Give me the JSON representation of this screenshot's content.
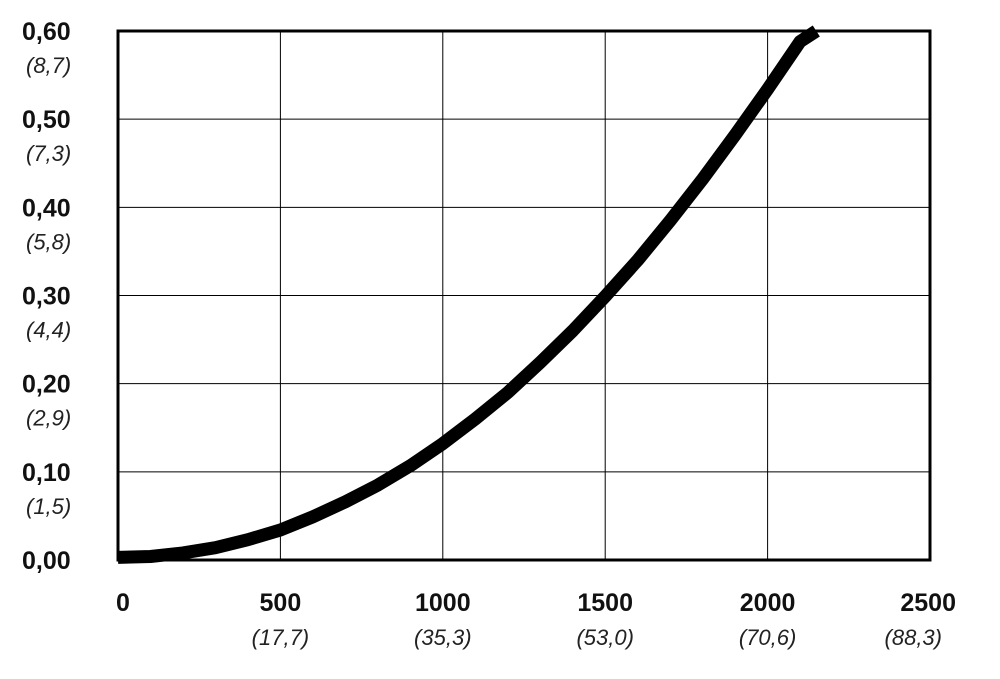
{
  "chart_data": {
    "type": "line",
    "title": "",
    "xlabel": "",
    "ylabel": "",
    "xlim": [
      0,
      2500
    ],
    "ylim": [
      0,
      0.6
    ],
    "grid": true,
    "x_ticks": [
      {
        "label": "0",
        "sub": ""
      },
      {
        "label": "500",
        "sub": "(17,7)"
      },
      {
        "label": "1000",
        "sub": "(35,3)"
      },
      {
        "label": "1500",
        "sub": "(53,0)"
      },
      {
        "label": "2000",
        "sub": "(70,6)"
      },
      {
        "label": "2500",
        "sub": "(88,3)"
      }
    ],
    "y_ticks": [
      {
        "label": "0,00",
        "sub": ""
      },
      {
        "label": "0,10",
        "sub": "(1,5)"
      },
      {
        "label": "0,20",
        "sub": "(2,9)"
      },
      {
        "label": "0,30",
        "sub": "(4,4)"
      },
      {
        "label": "0,40",
        "sub": "(5,8)"
      },
      {
        "label": "0,50",
        "sub": "(7,3)"
      },
      {
        "label": "0,60",
        "sub": "(8,7)"
      }
    ],
    "series": [
      {
        "x": [
          0,
          100,
          200,
          300,
          400,
          500,
          600,
          700,
          800,
          900,
          1000,
          1100,
          1200,
          1300,
          1400,
          1500,
          1600,
          1700,
          1800,
          1900,
          2000,
          2100,
          2150
        ],
        "y": [
          0.003,
          0.004,
          0.008,
          0.014,
          0.023,
          0.034,
          0.049,
          0.066,
          0.085,
          0.107,
          0.132,
          0.16,
          0.19,
          0.224,
          0.26,
          0.299,
          0.34,
          0.385,
          0.432,
          0.482,
          0.534,
          0.588,
          0.6
        ]
      }
    ]
  }
}
